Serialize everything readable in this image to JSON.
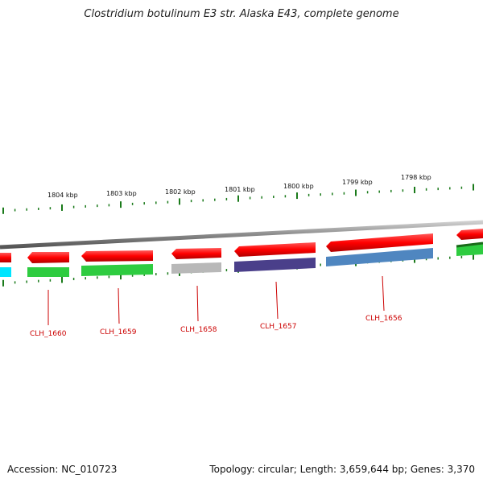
{
  "title": "Clostridium botulinum E3 str. Alaska E43, complete genome",
  "footer": {
    "accession": "Accession: NC_010723",
    "topology": "Topology: circular; Length: 3,659,644 bp; Genes: 3,370"
  },
  "colors": {
    "forward_gene": "#ff1a1a",
    "backbone": "#8a8a8a",
    "tick": "#1a7a1a",
    "label": "#cc0000"
  },
  "kbp_labels": [
    "1804 kbp",
    "1803 kbp",
    "1802 kbp",
    "1801 kbp",
    "1800 kbp",
    "1799 kbp",
    "1798 kbp"
  ],
  "gene_labels": [
    "CLH_1660",
    "CLH_1659",
    "CLH_1658",
    "CLH_1657",
    "CLH_1656"
  ],
  "gene_colors": [
    "#2ecc40",
    "#2ecc40",
    "#b8b8b8",
    "#4a3f8a",
    "#4f86c0"
  ]
}
